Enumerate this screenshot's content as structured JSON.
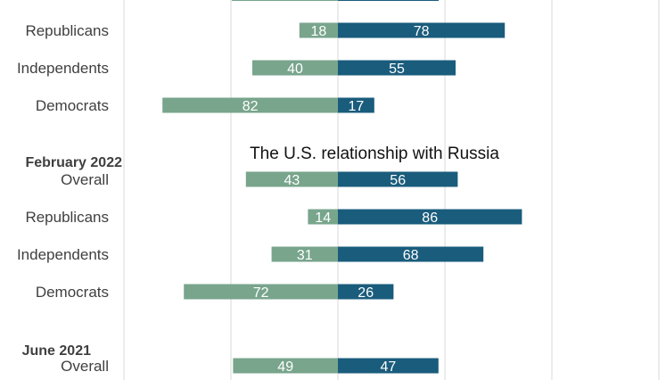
{
  "chart_data": {
    "type": "bar",
    "orientation": "horizontal",
    "layout": "diverging",
    "colors": {
      "negative": "#78a58c",
      "positive": "#1a5c7c"
    },
    "annotation": "The U.S. relationship with Russia",
    "xlim": [
      -100,
      100
    ],
    "grid": true,
    "rows": [
      {
        "group": "",
        "label": "Republicans",
        "negative": 18,
        "positive": 78
      },
      {
        "group": "",
        "label": "Independents",
        "negative": 40,
        "positive": 55
      },
      {
        "group": "",
        "label": "Democrats",
        "negative": 82,
        "positive": 17
      },
      {
        "group": "February 2022",
        "label": "Overall",
        "negative": 43,
        "positive": 56
      },
      {
        "group": "",
        "label": "Republicans",
        "negative": 14,
        "positive": 86
      },
      {
        "group": "",
        "label": "Independents",
        "negative": 31,
        "positive": 68
      },
      {
        "group": "",
        "label": "Democrats",
        "negative": 72,
        "positive": 26
      },
      {
        "group": "June 2021",
        "label": "Overall",
        "negative": 49,
        "positive": 47
      }
    ]
  }
}
